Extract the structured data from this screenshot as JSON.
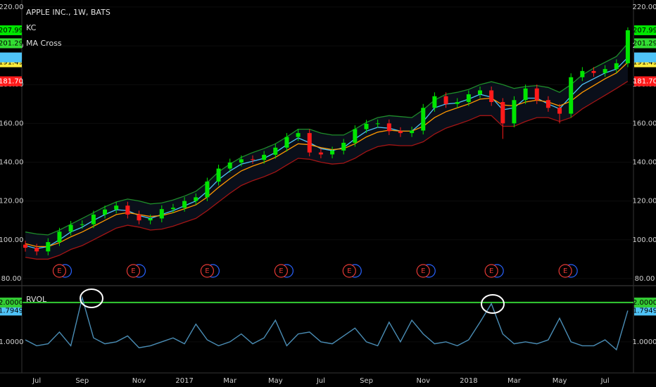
{
  "chart_data": [
    {
      "type": "candlestick",
      "title": "APPLE INC., 1W, BATS",
      "categories": [
        null,
        "Jul",
        null,
        null,
        null,
        "Sep",
        null,
        null,
        null,
        null,
        "Nov",
        null,
        null,
        null,
        "2017",
        null,
        null,
        null,
        "Mar",
        null,
        null,
        null,
        "May",
        null,
        null,
        null,
        "Jul",
        null,
        null,
        null,
        "Sep",
        null,
        null,
        null,
        null,
        "Nov",
        null,
        null,
        null,
        "2018",
        null,
        null,
        null,
        "Mar",
        null,
        null,
        null,
        "May",
        null,
        null,
        null,
        "Jul",
        null,
        null
      ],
      "open": [
        97.5,
        95.9,
        94.0,
        98.8,
        104.2,
        107.7,
        108.0,
        113.0,
        115.6,
        117.6,
        113.0,
        110.0,
        111.0,
        115.8,
        116.5,
        120.0,
        121.9,
        130.0,
        136.7,
        139.8,
        141.5,
        141.2,
        143.8,
        147.5,
        153.0,
        155.0,
        145.0,
        144.0,
        146.0,
        150.0,
        157.0,
        159.8,
        160.0,
        156.0,
        155.0,
        156.3,
        168.0,
        174.0,
        170.0,
        171.0,
        175.0,
        177.0,
        171.0,
        160.0,
        172.0,
        178.0,
        172.0,
        168.0,
        165.0,
        183.8,
        187.0,
        186.0,
        188.0,
        191.0
      ],
      "high": [
        99.5,
        97.9,
        100.8,
        106.2,
        109.7,
        110,
        115,
        117.6,
        119.6,
        119.6,
        115,
        113,
        117.8,
        118.5,
        122,
        123.9,
        132,
        138.7,
        141.8,
        143.5,
        143.5,
        145.8,
        149.5,
        155,
        157,
        157,
        147,
        148,
        152,
        159,
        161.8,
        162,
        162,
        158,
        158.3,
        170,
        176,
        176,
        173,
        177,
        179,
        179,
        173,
        174,
        180,
        180,
        174,
        170,
        185.8,
        189,
        189,
        190,
        193,
        209.5
      ],
      "low": [
        93.9,
        92,
        92,
        96.8,
        102.2,
        105.7,
        106,
        111,
        113.6,
        111,
        108,
        108,
        109,
        113.8,
        114.5,
        118,
        119.9,
        128,
        134.7,
        137.8,
        139.2,
        139.2,
        141.8,
        145.5,
        151,
        143,
        142,
        142,
        144,
        148,
        155,
        157.8,
        154,
        153,
        153,
        154.3,
        166,
        168,
        168,
        169,
        173,
        169,
        152,
        158,
        170,
        170,
        166,
        160,
        163,
        181.8,
        184,
        184,
        186,
        189
      ],
      "close": [
        95.9,
        94.0,
        98.8,
        104.2,
        107.7,
        108.0,
        113.0,
        115.6,
        117.6,
        113.0,
        110.0,
        111.0,
        115.8,
        116.5,
        120.0,
        121.9,
        130.0,
        136.7,
        139.8,
        141.5,
        141.2,
        143.8,
        147.5,
        153.0,
        155.0,
        145.0,
        144.0,
        146.0,
        150.0,
        157.0,
        159.8,
        160.0,
        156.0,
        155.0,
        156.3,
        168.0,
        174.0,
        170.0,
        171.0,
        175.0,
        177.0,
        171.0,
        160.0,
        172.0,
        178.0,
        172.0,
        168.0,
        165.0,
        183.8,
        187.0,
        186.0,
        188.0,
        191.0,
        207.99
      ],
      "last_label": "207.99",
      "up_color": "#00e600",
      "down_color": "#ff1a1a",
      "overlays": [
        {
          "name": "KC",
          "upper": {
            "color": "#1e8c2a",
            "last_label": "201.29",
            "values": [
              104,
              103,
              102.5,
              105,
              108,
              111,
              114,
              117,
              119.5,
              121,
              120,
              118.5,
              119,
              120.5,
              122.5,
              125,
              129.5,
              135,
              139,
              142.5,
              145,
              147,
              149.5,
              153,
              157,
              157,
              155,
              154,
              154,
              157,
              160.5,
              163,
              164,
              163.5,
              163,
              167,
              172,
              175,
              176,
              177.5,
              180,
              181.5,
              180,
              178,
              179,
              179.5,
              178.5,
              176,
              180,
              185,
              188.5,
              191.5,
              194.5,
              201.29
            ]
          },
          "lower": {
            "color": "#a31515",
            "last_label": "181.70",
            "values": [
              91,
              90,
              90,
              92,
              95,
              97,
              100,
              103,
              106,
              107.5,
              106.5,
              105,
              105.5,
              107,
              109,
              111,
              115,
              119.5,
              124,
              128,
              130.5,
              132.5,
              135,
              138.5,
              142,
              141.5,
              140,
              139,
              139.5,
              142,
              145.5,
              148,
              149,
              148.5,
              148.5,
              150.5,
              154.5,
              157.5,
              159.5,
              161.5,
              164,
              164,
              158.5,
              158.5,
              161,
              163,
              163,
              161,
              163,
              167.5,
              171,
              174.5,
              178,
              181.7
            ]
          }
        },
        {
          "name": "MA Cross",
          "series": [
            {
              "color": "#4fc3f7",
              "values": [
                97,
                95.5,
                96.5,
                100,
                104,
                106.5,
                110,
                113,
                115.5,
                115,
                112.5,
                111,
                113,
                115,
                117.5,
                120,
                125,
                131,
                135.5,
                139,
                140.5,
                142,
                145,
                149,
                152.5,
                150,
                147,
                146,
                147.5,
                152,
                156,
                158,
                157.5,
                156,
                156,
                161,
                168,
                170,
                170.5,
                172.5,
                175,
                173.5,
                167,
                168,
                173,
                173,
                170,
                167.5,
                174,
                180,
                183,
                186,
                188,
                194
              ]
            },
            {
              "color": "#ffeb3b",
              "line_color": "#ff9800",
              "last_label": "191.49",
              "values": [
                98,
                96.5,
                96.5,
                98.5,
                101.5,
                104,
                107,
                110,
                113,
                114,
                113,
                112,
                112.5,
                114,
                116,
                118,
                122,
                127,
                131.5,
                135.5,
                138,
                140,
                142.5,
                146,
                149.5,
                149,
                147.5,
                146.5,
                147,
                149.5,
                153,
                155.5,
                156.5,
                156,
                156,
                158.5,
                163,
                166,
                168,
                170,
                172.5,
                173,
                169.5,
                169,
                171,
                172,
                171,
                169,
                171.5,
                176,
                179.5,
                183,
                186,
                191.49
              ]
            }
          ]
        }
      ],
      "earnings": {
        "label": "E",
        "at": [
          3,
          9.5,
          16,
          22.5,
          28.5,
          35,
          41,
          47.5
        ]
      },
      "ylim": [
        76.7,
        223.6
      ],
      "yticks": [
        {
          "value": 80,
          "label": "80.00"
        },
        {
          "value": 100,
          "label": "100.00"
        },
        {
          "value": 120,
          "label": "120.00"
        },
        {
          "value": 140,
          "label": "140.00"
        },
        {
          "value": 160,
          "label": "160.00"
        },
        {
          "value": 180,
          "label": "180.00"
        },
        {
          "value": 200,
          "label": "200.00"
        },
        {
          "value": 220,
          "label": "220.00"
        }
      ]
    },
    {
      "type": "line",
      "title": "RVOL",
      "color": "#4a8db5",
      "values": [
        1.05,
        0.9,
        0.95,
        1.25,
        0.9,
        2.12,
        1.1,
        0.95,
        1.0,
        1.15,
        0.85,
        0.9,
        1.0,
        1.1,
        0.95,
        1.45,
        1.05,
        0.9,
        1.0,
        1.2,
        0.95,
        1.1,
        1.55,
        0.9,
        1.2,
        1.25,
        1.0,
        0.95,
        1.15,
        1.35,
        1.0,
        0.9,
        1.5,
        1.0,
        1.55,
        1.2,
        0.95,
        1.0,
        0.9,
        1.05,
        1.5,
        1.97,
        1.2,
        0.95,
        1.0,
        0.95,
        1.05,
        1.6,
        1.0,
        0.9,
        0.9,
        1.05,
        0.8,
        1.7949
      ],
      "last_label": "1.7949",
      "last_color": "#4fc3f7",
      "level": {
        "value": 2,
        "label": "2.0000",
        "color": "#33cc33"
      },
      "ylim": [
        0.21,
        2.41
      ],
      "yticks": [
        {
          "value": 1,
          "label": "1.0000"
        }
      ]
    }
  ]
}
